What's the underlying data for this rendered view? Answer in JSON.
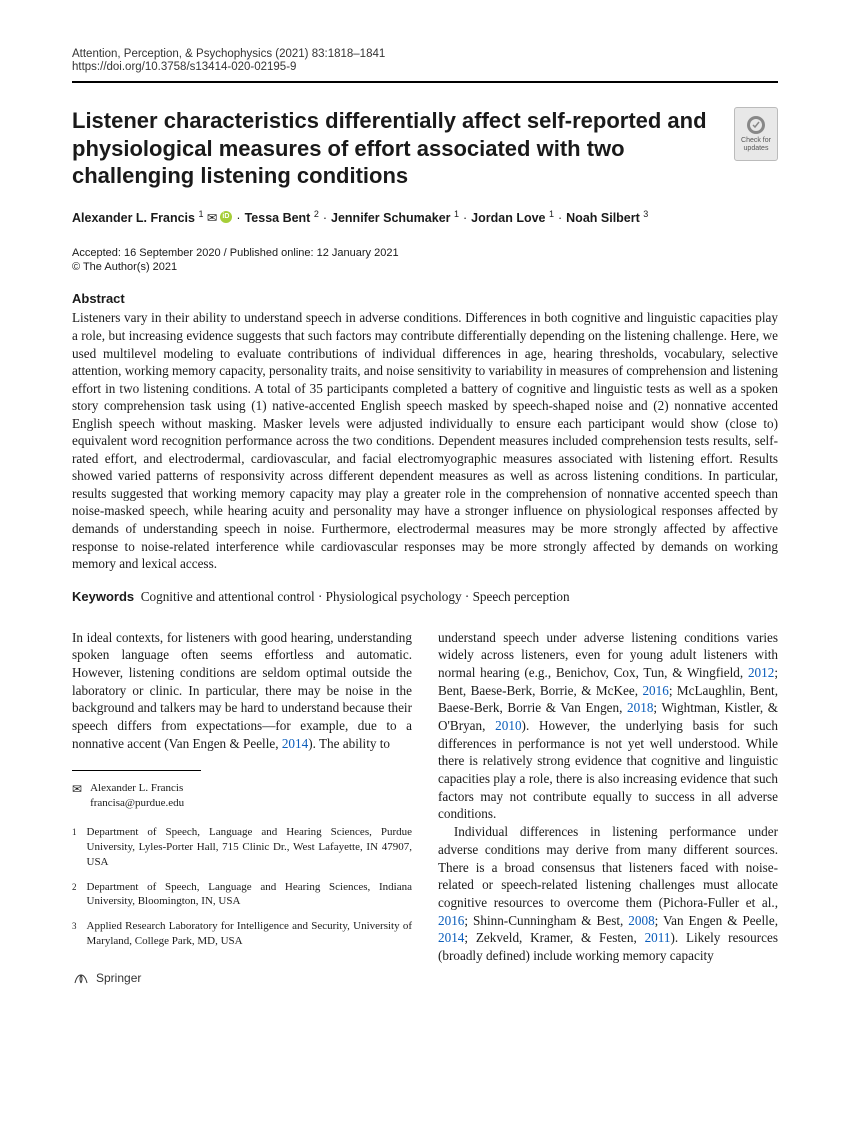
{
  "journal": "Attention, Perception, & Psychophysics (2021) 83:1818–1841",
  "doi": "https://doi.org/10.3758/s13414-020-02195-9",
  "badge_text": "Check for updates",
  "title": "Listener characteristics differentially affect self-reported and physiological measures of effort associated with two challenging listening conditions",
  "authors": [
    {
      "name": "Alexander L. Francis",
      "aff": "1",
      "orcid": true,
      "envelope": true
    },
    {
      "name": "Tessa Bent",
      "aff": "2"
    },
    {
      "name": "Jennifer Schumaker",
      "aff": "1"
    },
    {
      "name": "Jordan Love",
      "aff": "1"
    },
    {
      "name": "Noah Silbert",
      "aff": "3"
    }
  ],
  "dates": "Accepted: 16 September 2020 / Published online: 12 January 2021",
  "copyright": "© The Author(s) 2021",
  "abstract_head": "Abstract",
  "abstract": "Listeners vary in their ability to understand speech in adverse conditions. Differences in both cognitive and linguistic capacities play a role, but increasing evidence suggests that such factors may contribute differentially depending on the listening challenge. Here, we used multilevel modeling to evaluate contributions of individual differences in age, hearing thresholds, vocabulary, selective attention, working memory capacity, personality traits, and noise sensitivity to variability in measures of comprehension and listening effort in two listening conditions. A total of 35 participants completed a battery of cognitive and linguistic tests as well as a spoken story comprehension task using (1) native-accented English speech masked by speech-shaped noise and (2) nonnative accented English speech without masking. Masker levels were adjusted individually to ensure each participant would show (close to) equivalent word recognition performance across the two conditions. Dependent measures included comprehension tests results, self-rated effort, and electrodermal, cardiovascular, and facial electromyographic measures associated with listening effort. Results showed varied patterns of responsivity across different dependent measures as well as across listening conditions. In particular, results suggested that working memory capacity may play a greater role in the comprehension of nonnative accented speech than noise-masked speech, while hearing acuity and personality may have a stronger influence on physiological responses affected by demands of understanding speech in noise. Furthermore, electrodermal measures may be more strongly affected by affective response to noise-related interference while cardiovascular responses may be more strongly affected by demands on working memory and lexical access.",
  "keywords_label": "Keywords",
  "keywords": "Cognitive and attentional control · Physiological psychology · Speech perception",
  "col1": {
    "p1a": "In ideal contexts, for listeners with good hearing, understanding spoken language often seems effortless and automatic. However, listening conditions are seldom optimal outside the laboratory or clinic. In particular, there may be noise in the background and talkers may be hard to understand because their speech differs from expectations—for example, due to a nonnative accent (Van Engen & Peelle, ",
    "c1": "2014",
    "p1b": "). The ability to"
  },
  "col2": {
    "p1a": "understand speech under adverse listening conditions varies widely across listeners, even for young adult listeners with normal hearing (e.g., Benichov, Cox, Tun, & Wingfield, ",
    "c1": "2012",
    "p1b": "; Bent, Baese-Berk, Borrie, & McKee, ",
    "c2": "2016",
    "p1c": "; McLaughlin, Bent, Baese-Berk, Borrie & Van Engen, ",
    "c3": "2018",
    "p1d": "; Wightman, Kistler, & O'Bryan, ",
    "c4": "2010",
    "p1e": "). However, the underlying basis for such differences in performance is not yet well understood. While there is relatively strong evidence that cognitive and linguistic capacities play a role, there is also increasing evidence that such factors may not contribute equally to success in all adverse conditions.",
    "p2a": "Individual differences in listening performance under adverse conditions may derive from many different sources. There is a broad consensus that listeners faced with noise-related or speech-related listening challenges must allocate cognitive resources to overcome them (Pichora-Fuller et al., ",
    "c5": "2016",
    "p2b": "; Shinn-Cunningham & Best, ",
    "c6": "2008",
    "p2c": "; Van Engen & Peelle, ",
    "c7": "2014",
    "p2d": "; Zekveld, Kramer, & Festen, ",
    "c8": "2011",
    "p2e": "). Likely resources (broadly defined) include working memory capacity"
  },
  "corr_name": "Alexander L. Francis",
  "corr_email": "francisa@purdue.edu",
  "affils": [
    {
      "n": "1",
      "text": "Department of Speech, Language and Hearing Sciences, Purdue University, Lyles-Porter Hall, 715 Clinic Dr., West Lafayette, IN 47907, USA"
    },
    {
      "n": "2",
      "text": "Department of Speech, Language and Hearing Sciences, Indiana University, Bloomington, IN, USA"
    },
    {
      "n": "3",
      "text": "Applied Research Laboratory for Intelligence and Security, University of Maryland, College Park, MD, USA"
    }
  ],
  "publisher": "Springer"
}
